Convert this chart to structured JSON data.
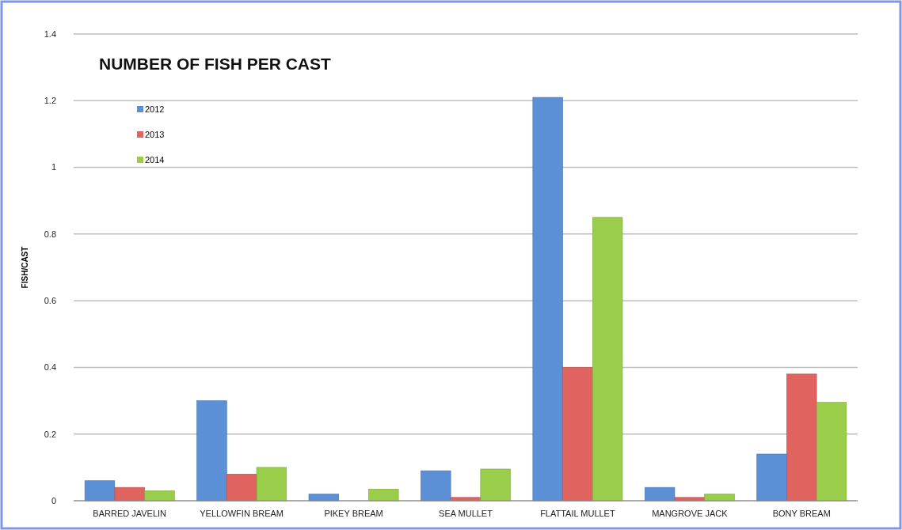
{
  "chart_data": {
    "type": "bar",
    "title": "NUMBER OF FISH PER CAST",
    "ylabel": "FISH/CAST",
    "categories": [
      "BARRED JAVELIN",
      "YELLOWFIN BREAM",
      "PIKEY BREAM",
      "SEA MULLET",
      "FLATTAIL MULLET",
      "MANGROVE JACK",
      "BONY BREAM"
    ],
    "series": [
      {
        "name": "2012",
        "color": "#5b8fd6",
        "values": [
          0.06,
          0.3,
          0.02,
          0.09,
          1.21,
          0.04,
          0.14
        ]
      },
      {
        "name": "2013",
        "color": "#e0635f",
        "values": [
          0.04,
          0.08,
          0,
          0.01,
          0.4,
          0.01,
          0.38
        ]
      },
      {
        "name": "2014",
        "color": "#9acd4a",
        "values": [
          0.03,
          0.1,
          0.035,
          0.095,
          0.85,
          0.02,
          0.295
        ]
      }
    ],
    "ylim": [
      0,
      1.4
    ],
    "yticks": [
      0,
      {
        "value": 0.2,
        "label": "0.2"
      },
      {
        "value": 0.4,
        "label": "0.4"
      },
      {
        "value": 0.6,
        "label": "0.6"
      },
      {
        "value": 0.8,
        "label": "0.8"
      },
      1,
      {
        "value": 1.2,
        "label": "1.2"
      },
      {
        "value": 1.4,
        "label": "1.4"
      }
    ],
    "grid": "y",
    "legend": "top left"
  }
}
